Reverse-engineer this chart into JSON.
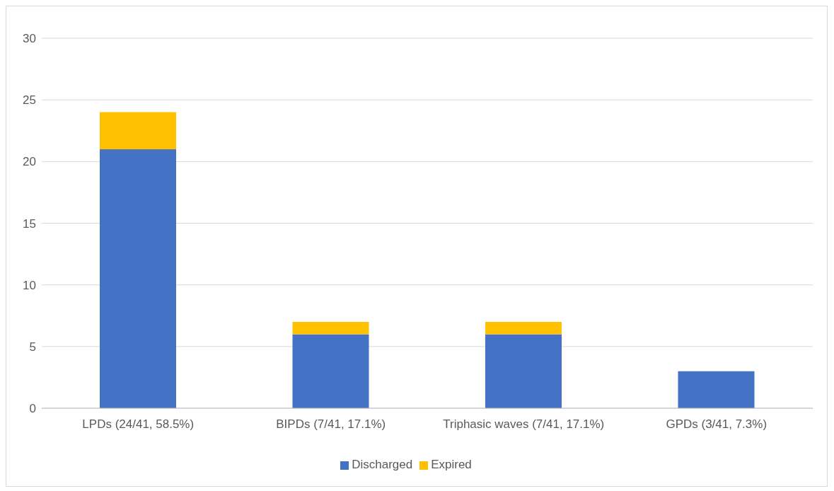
{
  "chart_data": {
    "type": "bar",
    "stacked": true,
    "categories": [
      "LPDs (24/41, 58.5%)",
      "BIPDs (7/41, 17.1%)",
      "Triphasic waves (7/41, 17.1%)",
      "GPDs (3/41, 7.3%)"
    ],
    "series": [
      {
        "name": "Discharged",
        "color": "#4472c4",
        "values": [
          21,
          6,
          6,
          3
        ]
      },
      {
        "name": "Expired",
        "color": "#ffc000",
        "values": [
          3,
          1,
          1,
          0
        ]
      }
    ],
    "ylim": [
      0,
      30
    ],
    "yticks": [
      0,
      5,
      10,
      15,
      20,
      25,
      30
    ],
    "grid": "y",
    "legend": "bottom"
  }
}
